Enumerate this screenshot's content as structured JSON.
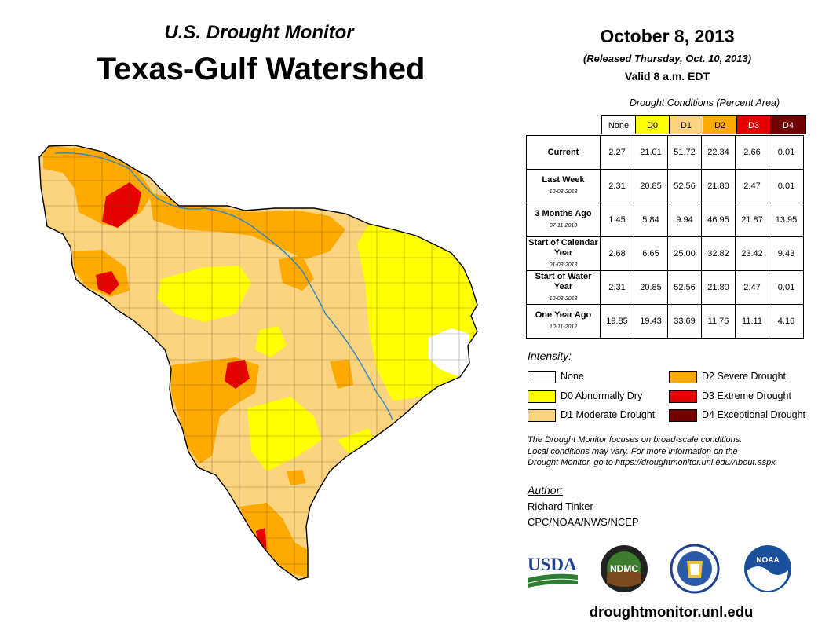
{
  "header": {
    "subtitle": "U.S. Drought Monitor",
    "title": "Texas-Gulf Watershed",
    "date": "October 8, 2013",
    "released": "(Released Thursday, Oct. 10, 2013)",
    "valid": "Valid 8 a.m. EDT"
  },
  "conditions": {
    "caption": "Drought Conditions (Percent Area)",
    "columns": [
      "None",
      "D0",
      "D1",
      "D2",
      "D3",
      "D4"
    ],
    "column_colors": [
      "#ffffff",
      "#ffff00",
      "#fcd37f",
      "#ffaa00",
      "#e60000",
      "#730000"
    ],
    "rows": [
      {
        "label": "Current",
        "date": "",
        "values": [
          "2.27",
          "21.01",
          "51.72",
          "22.34",
          "2.66",
          "0.01"
        ]
      },
      {
        "label": "Last Week",
        "date": "10-03-2013",
        "values": [
          "2.31",
          "20.85",
          "52.56",
          "21.80",
          "2.47",
          "0.01"
        ]
      },
      {
        "label": "3 Months Ago",
        "date": "07-11-2013",
        "values": [
          "1.45",
          "5.84",
          "9.94",
          "46.95",
          "21.87",
          "13.95"
        ]
      },
      {
        "label": "Start of Calendar Year",
        "date": "01-03-2013",
        "values": [
          "2.68",
          "6.65",
          "25.00",
          "32.82",
          "23.42",
          "9.43"
        ]
      },
      {
        "label": "Start of Water Year",
        "date": "10-03-2013",
        "values": [
          "2.31",
          "20.85",
          "52.56",
          "21.80",
          "2.47",
          "0.01"
        ]
      },
      {
        "label": "One Year Ago",
        "date": "10-11-2012",
        "values": [
          "19.85",
          "19.43",
          "33.69",
          "11.76",
          "11.11",
          "4.16"
        ]
      }
    ]
  },
  "legend": {
    "title": "Intensity:",
    "items": [
      {
        "label": "None",
        "color": "#ffffff"
      },
      {
        "label": "D0 Abnormally Dry",
        "color": "#ffff00"
      },
      {
        "label": "D1 Moderate Drought",
        "color": "#fcd37f"
      },
      {
        "label": "D2 Severe Drought",
        "color": "#ffaa00"
      },
      {
        "label": "D3 Extreme Drought",
        "color": "#e60000"
      },
      {
        "label": "D4 Exceptional Drought",
        "color": "#730000"
      }
    ]
  },
  "note": {
    "line1": "The Drought Monitor focuses on broad-scale conditions.",
    "line2": "Local conditions may vary. For more information on the",
    "line3": "Drought Monitor, go to https://droughtmonitor.unl.edu/About.aspx"
  },
  "author": {
    "title": "Author:",
    "name": "Richard Tinker",
    "org": "CPC/NOAA/NWS/NCEP"
  },
  "logos": {
    "usda": "USDA",
    "ndmc": "NDMC",
    "noaa": "NOAA"
  },
  "footer": {
    "site": "droughtmonitor.unl.edu"
  }
}
